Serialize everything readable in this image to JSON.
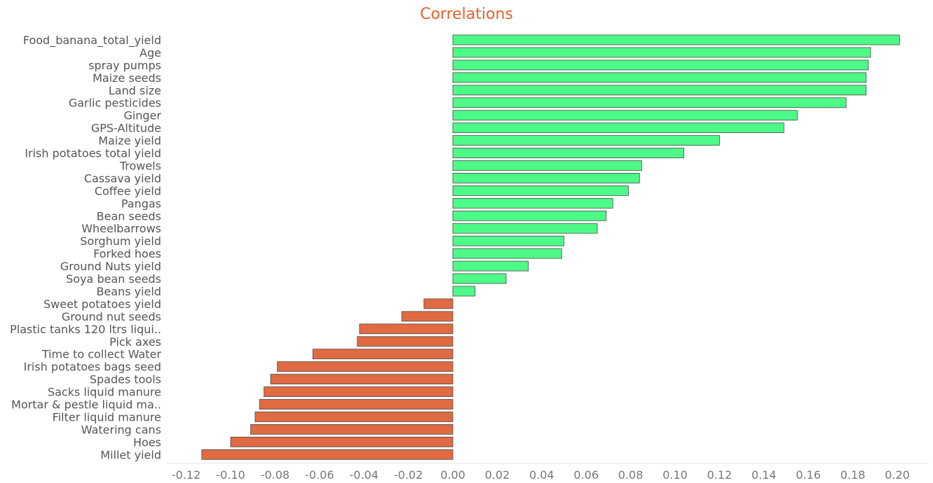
{
  "chart_data": {
    "type": "bar",
    "orientation": "horizontal",
    "title": "Correlations",
    "xlabel": "",
    "ylabel": "",
    "xlim": [
      -0.13,
      0.215
    ],
    "xticks": [
      -0.12,
      -0.1,
      -0.08,
      -0.06,
      -0.04,
      -0.02,
      0.0,
      0.02,
      0.04,
      0.06,
      0.08,
      0.1,
      0.12,
      0.14,
      0.16,
      0.18,
      0.2
    ],
    "xtick_labels": [
      "-0.12",
      "-0.10",
      "-0.08",
      "-0.06",
      "-0.04",
      "-0.02",
      "0.00",
      "0.02",
      "0.04",
      "0.06",
      "0.08",
      "0.10",
      "0.12",
      "0.14",
      "0.16",
      "0.18",
      "0.20"
    ],
    "grid": false,
    "colors": {
      "positive": "#4dfa87",
      "negative": "#e06a42",
      "title": "#e8602c"
    },
    "categories": [
      "Food_banana_total_yield",
      "Age",
      "spray pumps",
      "Maize seeds",
      "Land size",
      "Garlic pesticides",
      "Ginger",
      "GPS-Altitude",
      "Maize yield",
      "Irish potatoes total yield",
      "Trowels",
      "Cassava yield",
      "Coffee yield",
      "Pangas",
      "Bean seeds",
      "Wheelbarrows",
      "Sorghum yield",
      "Forked hoes",
      "Ground Nuts yield",
      "Soya bean seeds",
      "Beans yield",
      "Sweet potatoes yield",
      "Ground nut seeds",
      "Plastic tanks 120 ltrs liqui..",
      "Pick axes",
      "Time to collect Water",
      "Irish potatoes bags seed",
      "Spades tools",
      "Sacks liquid manure",
      "Mortar & pestle liquid ma..",
      "Filter liquid manure",
      "Watering cans",
      "Hoes",
      "Millet yield"
    ],
    "values": [
      0.201,
      0.188,
      0.187,
      0.186,
      0.186,
      0.177,
      0.155,
      0.149,
      0.12,
      0.104,
      0.085,
      0.084,
      0.079,
      0.072,
      0.069,
      0.065,
      0.05,
      0.049,
      0.034,
      0.024,
      0.01,
      -0.013,
      -0.023,
      -0.042,
      -0.043,
      -0.063,
      -0.079,
      -0.082,
      -0.085,
      -0.087,
      -0.089,
      -0.091,
      -0.1,
      -0.113
    ]
  }
}
